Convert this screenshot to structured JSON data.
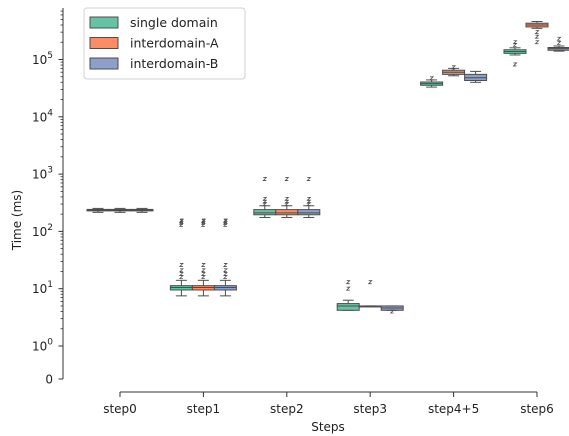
{
  "chart_data": {
    "type": "box",
    "xlabel": "Steps",
    "ylabel": "Time (ms)",
    "yscale": "symlog",
    "categories": [
      "step0",
      "step1",
      "step2",
      "step3",
      "step4+5",
      "step6"
    ],
    "y_tick_labels": [
      {
        "base": "0",
        "exp": ""
      },
      {
        "base": "10",
        "exp": "0"
      },
      {
        "base": "10",
        "exp": "1"
      },
      {
        "base": "10",
        "exp": "2"
      },
      {
        "base": "10",
        "exp": "3"
      },
      {
        "base": "10",
        "exp": "4"
      },
      {
        "base": "10",
        "exp": "5"
      }
    ],
    "legend_position": "top-left",
    "series": [
      {
        "name": "single domain",
        "color": "#66c2a5",
        "boxes": [
          {
            "whislo": 215,
            "q1": 228,
            "med": 235,
            "q3": 242,
            "whishi": 252,
            "fliers": []
          },
          {
            "whislo": 7.5,
            "q1": 9.5,
            "med": 10.5,
            "q3": 11.3,
            "whishi": 14,
            "fliers": [
              16,
              18,
              21,
              26,
              130,
              140,
              150,
              155
            ]
          },
          {
            "whislo": 175,
            "q1": 195,
            "med": 210,
            "q3": 240,
            "whishi": 280,
            "fliers": [
              300,
              330,
              370,
              820
            ]
          },
          {
            "whislo": 4.2,
            "q1": 4.2,
            "med": 5.0,
            "q3": 5.5,
            "whishi": 6.3,
            "fliers": [
              10,
              13
            ]
          },
          {
            "whislo": 33000,
            "q1": 35500,
            "med": 38000,
            "q3": 40500,
            "whishi": 44000,
            "fliers": [
              47000
            ]
          },
          {
            "whislo": 120000,
            "q1": 128000,
            "med": 138000,
            "q3": 148000,
            "whishi": 160000,
            "fliers": [
              82000,
              180000,
              200000
            ]
          }
        ]
      },
      {
        "name": "interdomain-A",
        "color": "#fc8d62",
        "boxes": [
          {
            "whislo": 215,
            "q1": 228,
            "med": 235,
            "q3": 242,
            "whishi": 252,
            "fliers": []
          },
          {
            "whislo": 7.5,
            "q1": 9.5,
            "med": 10.5,
            "q3": 11.3,
            "whishi": 14,
            "fliers": [
              16,
              18,
              21,
              26,
              130,
              140,
              150,
              155
            ]
          },
          {
            "whislo": 175,
            "q1": 195,
            "med": 210,
            "q3": 240,
            "whishi": 280,
            "fliers": [
              300,
              330,
              370,
              820
            ]
          },
          {
            "whislo": 5.0,
            "q1": 5.0,
            "med": 5.0,
            "q3": 5.0,
            "whishi": 5.0,
            "fliers": [
              13
            ]
          },
          {
            "whislo": 52000,
            "q1": 55000,
            "med": 60000,
            "q3": 65000,
            "whishi": 70000,
            "fliers": [
              73000
            ]
          },
          {
            "whislo": 350000,
            "q1": 370000,
            "med": 400000,
            "q3": 430000,
            "whishi": 460000,
            "fliers": [
              300000,
              250000,
              200000
            ]
          }
        ]
      },
      {
        "name": "interdomain-B",
        "color": "#8da0cb",
        "boxes": [
          {
            "whislo": 215,
            "q1": 228,
            "med": 235,
            "q3": 242,
            "whishi": 252,
            "fliers": []
          },
          {
            "whislo": 7.5,
            "q1": 9.5,
            "med": 10.5,
            "q3": 11.3,
            "whishi": 14,
            "fliers": [
              16,
              18,
              21,
              26,
              130,
              140,
              150,
              155
            ]
          },
          {
            "whislo": 175,
            "q1": 195,
            "med": 210,
            "q3": 240,
            "whishi": 280,
            "fliers": [
              300,
              330,
              370,
              820
            ]
          },
          {
            "whislo": 4.2,
            "q1": 4.2,
            "med": 4.6,
            "q3": 5.0,
            "whishi": 5.0,
            "fliers": [
              4.0
            ]
          },
          {
            "whislo": 40000,
            "q1": 43000,
            "med": 48000,
            "q3": 55000,
            "whishi": 62000,
            "fliers": []
          },
          {
            "whislo": 140000,
            "q1": 145000,
            "med": 155000,
            "q3": 162000,
            "whishi": 172000,
            "fliers": [
              195000,
              230000
            ]
          }
        ]
      }
    ]
  }
}
